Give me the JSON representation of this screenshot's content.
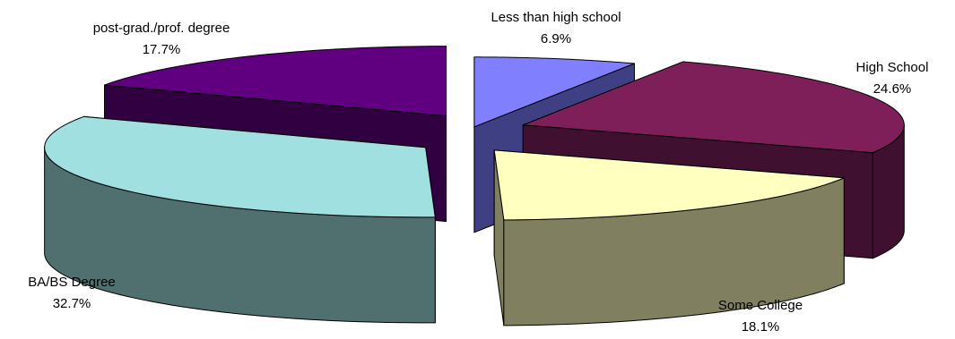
{
  "chart_data": {
    "type": "pie",
    "style": "3d-exploded",
    "title": "",
    "legend": "none",
    "slices": [
      {
        "label": "Less than high school",
        "value": 6.9,
        "value_label": "6.9%",
        "top_color": "#8080ff",
        "side_color": "#3f3f84"
      },
      {
        "label": "High School",
        "value": 24.6,
        "value_label": "24.6%",
        "top_color": "#7f1f59",
        "side_color": "#401030"
      },
      {
        "label": "Some College",
        "value": 18.1,
        "value_label": "18.1%",
        "top_color": "#ffffc0",
        "side_color": "#808060"
      },
      {
        "label": "BA/BS Degree",
        "value": 32.7,
        "value_label": "32.7%",
        "top_color": "#a0e0e0",
        "side_color": "#507070"
      },
      {
        "label": "post-grad./prof. degree",
        "value": 17.7,
        "value_label": "17.7%",
        "top_color": "#600080",
        "side_color": "#300040"
      }
    ]
  }
}
